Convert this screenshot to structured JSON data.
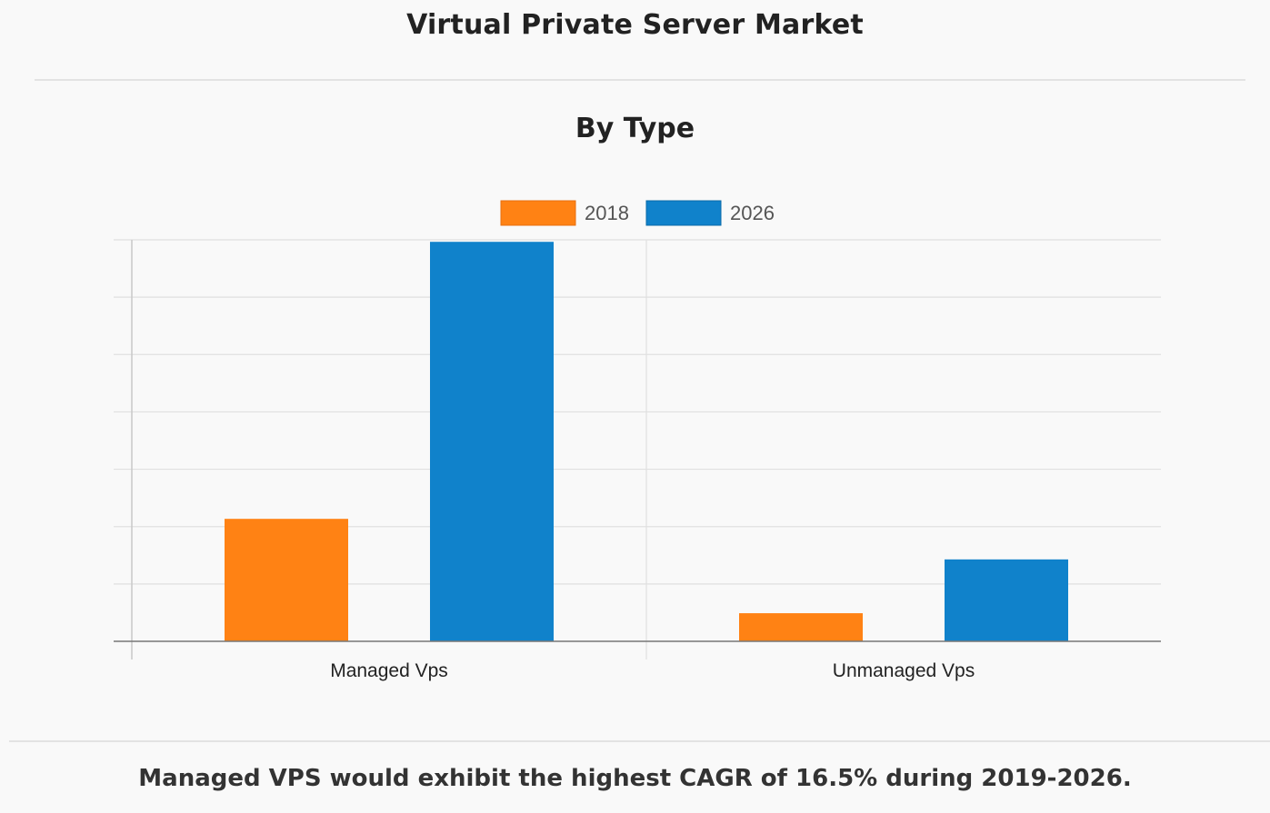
{
  "page": {
    "title": "Virtual Private Server Market",
    "caption": "Managed VPS would exhibit the highest CAGR of 16.5% during 2019-2026."
  },
  "colors": {
    "series_2018": "#ff8214",
    "series_2026": "#1082cb",
    "grid": "#e0e0e0",
    "axis": "#999999"
  },
  "chart_data": {
    "type": "bar",
    "title": "By Type",
    "xlabel": "",
    "ylabel": "",
    "categories": [
      "Managed Vps",
      "Unmanaged Vps"
    ],
    "series": [
      {
        "name": "2018",
        "values": [
          30.5,
          7.0
        ]
      },
      {
        "name": "2026",
        "values": [
          99.5,
          20.4
        ]
      }
    ],
    "ylim": [
      0,
      100
    ],
    "y_gridlines": 7,
    "y_tick_labels_shown": false,
    "grid": true,
    "legend": "top-center"
  }
}
